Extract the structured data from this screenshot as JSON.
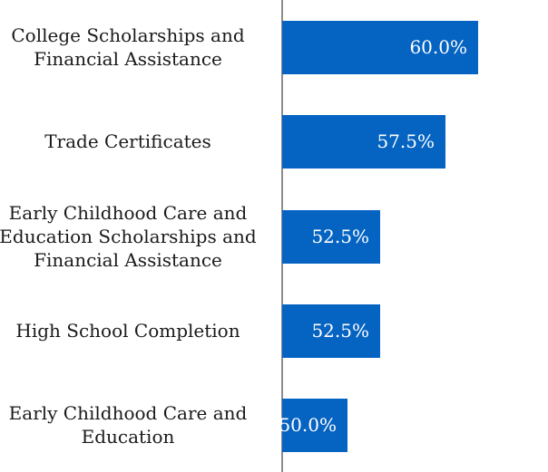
{
  "chart_data": {
    "type": "bar",
    "orientation": "horizontal",
    "categories": [
      "College Scholarships and\nFinancial Assistance",
      "Trade Certificates",
      "Early Childhood Care and\nEducation Scholarships and\nFinancial Assistance",
      "High School Completion",
      "Early Childhood Care and\nEducation"
    ],
    "values": [
      60.0,
      57.5,
      52.5,
      52.5,
      50.0
    ],
    "data_labels": [
      "60.0%",
      "57.5%",
      "52.5%",
      "52.5%",
      "50.0%"
    ],
    "xlim": [
      45,
      72
    ],
    "bar_color": "#0563c1",
    "label_color": "#ffffff",
    "grid": false,
    "legend": false
  }
}
